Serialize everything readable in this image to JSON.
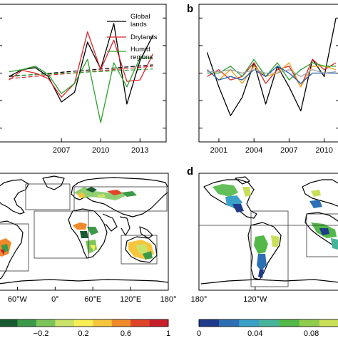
{
  "panels": {
    "a": {
      "letter": ""
    },
    "b": {
      "letter": "b"
    },
    "c": {
      "letter": ""
    },
    "d": {
      "letter": "d"
    }
  },
  "chart_data": [
    {
      "panel": "a",
      "type": "line",
      "x": [
        2003,
        2004,
        2005,
        2006,
        2007,
        2008,
        2009,
        2010,
        2011,
        2012,
        2013,
        2014
      ],
      "x_tick_labels": [
        "2007",
        "2010",
        "2013"
      ],
      "x_ticks": [
        2007,
        2010,
        2013
      ],
      "xlim": [
        2002.2,
        2015
      ],
      "ylim": [
        -1.0,
        1.0
      ],
      "legend": {
        "position": "top-right"
      },
      "series": [
        {
          "name": "Global lands",
          "color": "#000000",
          "values": [
            -0.05,
            0.05,
            0.08,
            -0.05,
            -0.42,
            -0.28,
            0.45,
            0.06,
            0.72,
            -0.45,
            0.18,
            0.55
          ]
        },
        {
          "name": "Drylands",
          "color": "#e0242c",
          "values": [
            -0.1,
            0.04,
            0.0,
            -0.08,
            -0.35,
            -0.15,
            0.6,
            0.05,
            0.48,
            -0.12,
            -0.1,
            0.28
          ]
        },
        {
          "name": "Humid regions",
          "color": "#2ca02c",
          "values": [
            0.02,
            0.05,
            0.1,
            -0.02,
            -0.3,
            -0.15,
            0.2,
            -0.72,
            0.15,
            -0.2,
            0.22,
            0.22
          ]
        }
      ],
      "trends": [
        {
          "color": "#000000",
          "start": [
            2003,
            -0.05
          ],
          "end": [
            2014,
            0.12
          ]
        },
        {
          "color": "#e0242c",
          "start": [
            2003,
            -0.08
          ],
          "end": [
            2014,
            0.1
          ]
        },
        {
          "color": "#2ca02c",
          "start": [
            2003,
            -0.04
          ],
          "end": [
            2014,
            0.06
          ]
        }
      ]
    },
    {
      "panel": "b",
      "type": "line",
      "x": [
        2000,
        2001,
        2002,
        2003,
        2004,
        2005,
        2006,
        2007,
        2008,
        2009,
        2010,
        2011
      ],
      "x_tick_labels": [
        "2001",
        "2004",
        "2007",
        "2010"
      ],
      "x_ticks": [
        2001,
        2004,
        2007,
        2010
      ],
      "xlim": [
        1999.3,
        2011.3
      ],
      "ylim": [
        -1.0,
        1.0
      ],
      "series": [
        {
          "color": "#000000",
          "values": [
            0.3,
            -0.2,
            -0.62,
            -0.35,
            0.15,
            -0.45,
            0.1,
            -0.2,
            -0.55,
            0.2,
            -0.05,
            0.8
          ]
        },
        {
          "color": "#e0242c",
          "values": [
            -0.05,
            0.05,
            -0.1,
            -0.05,
            0.15,
            -0.15,
            0.05,
            0.1,
            -0.2,
            0.2,
            0.05,
            0.15
          ]
        },
        {
          "color": "#f0a018",
          "values": [
            0.05,
            -0.1,
            0.05,
            -0.15,
            0.1,
            -0.05,
            0.0,
            0.15,
            -0.2,
            0.1,
            0.1,
            0.05
          ]
        },
        {
          "color": "#2ca02c",
          "values": [
            0.0,
            0.0,
            0.1,
            -0.05,
            0.2,
            -0.05,
            0.15,
            -0.1,
            0.05,
            0.15,
            0.1,
            0.1
          ]
        },
        {
          "color": "#1f5fb4",
          "values": [
            0.05,
            -0.1,
            -0.05,
            -0.1,
            0.05,
            -0.05,
            0.1,
            0.0,
            -0.15,
            0.0,
            0.0,
            0.0
          ]
        },
        {
          "color": "#9aa0a6",
          "values": [
            0.02,
            0.02,
            0.05,
            0.0,
            0.05,
            0.0,
            0.0,
            0.05,
            -0.05,
            0.05,
            0.0,
            0.02
          ]
        }
      ]
    },
    {
      "panel": "c",
      "type": "heatmap",
      "x_tick_labels": [
        "60°W",
        "0°",
        "60°E",
        "120°E",
        "180°"
      ],
      "x_ticks": [
        -60,
        0,
        60,
        120,
        180
      ],
      "xlim": [
        -90,
        180
      ],
      "colorbar": {
        "tick_labels": [
          "−0.2",
          "0.2",
          "0.6",
          "1"
        ],
        "tick_values": [
          -0.2,
          0.2,
          0.6,
          1.0
        ],
        "range": [
          -0.6,
          1.0
        ],
        "colors": [
          "#1a5a30",
          "#3a9a48",
          "#7dc55b",
          "#c9e26a",
          "#f7ee55",
          "#f7c53d",
          "#f08a2a",
          "#e0442a",
          "#c81e2a"
        ]
      }
    },
    {
      "panel": "d",
      "type": "heatmap",
      "x_tick_labels": [
        "180°",
        "120°W"
      ],
      "x_ticks": [
        -180,
        -120
      ],
      "xlim": [
        -180,
        -30
      ],
      "colorbar": {
        "tick_labels": [
          "0",
          "0.04",
          "0.08"
        ],
        "tick_values": [
          0,
          0.04,
          0.08
        ],
        "range": [
          0,
          0.1
        ],
        "colors": [
          "#1f3a8a",
          "#2c6fb5",
          "#3aa0c8",
          "#46b49a",
          "#52b848",
          "#8fcb4d",
          "#c9df5a"
        ]
      }
    }
  ],
  "legend_a": {
    "global_line1": "Global",
    "global_line2": "lands",
    "drylands": "Drylands",
    "humid_line1": "Humid",
    "humid_line2": "regions"
  }
}
